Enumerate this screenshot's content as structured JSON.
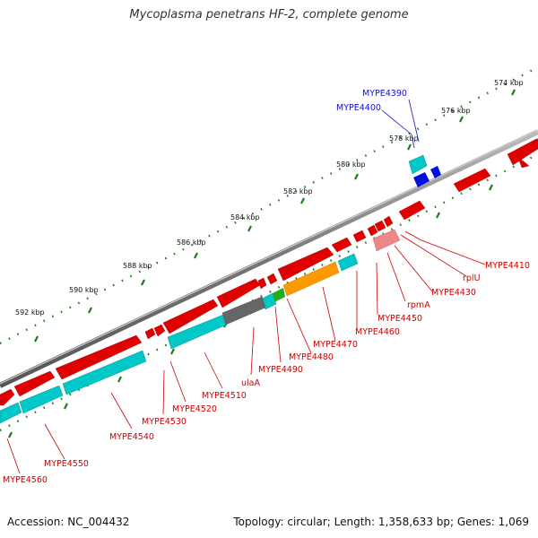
{
  "title": "Mycoplasma penetrans HF-2, complete genome",
  "footer": {
    "accession": "Accession: NC_004432",
    "summary": "Topology: circular; Length: 1,358,633 bp; Genes: 1,069"
  },
  "ticks": [
    "574 kbp",
    "576 kbp",
    "578 kbp",
    "580 kbp",
    "582 kbp",
    "584 kbp",
    "586 kbp",
    "588 kbp",
    "590 kbp",
    "592 kbp"
  ],
  "labels_red": [
    "MYPE4410",
    "rplU",
    "MYPE4430",
    "rpmA",
    "MYPE4450",
    "MYPE4460",
    "MYPE4470",
    "MYPE4480",
    "MYPE4490",
    "ulaA",
    "MYPE4510",
    "MYPE4520",
    "MYPE4530",
    "MYPE4540",
    "MYPE4550",
    "MYPE4560"
  ],
  "labels_blue": [
    "MYPE4390",
    "MYPE4400"
  ],
  "colors": {
    "forward_gene": "#e00000",
    "reverse_gene": "#00c8c8",
    "blue_gene": "#0010e0",
    "orange_gene": "#ff9900",
    "gray_gene": "#666666",
    "backbone": "#888888",
    "tick": "#1a7a1a"
  }
}
